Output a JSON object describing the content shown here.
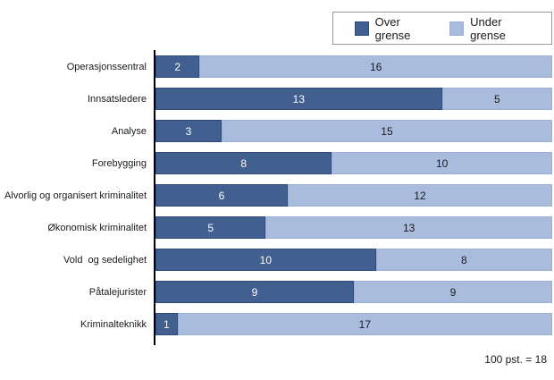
{
  "colors": {
    "over": "#41608F",
    "over_border": "#2F4B7B",
    "under": "#A9BCDE",
    "under_border": "#9BB0D6",
    "axis": "#000000",
    "legend_border": "#999999",
    "label_text": "#1A1A1A",
    "value_text_on_dark": "#FFFFFF",
    "value_text_on_light": "#1A1A1A"
  },
  "legend": {
    "items": [
      {
        "label": "Over grense",
        "swatch": "dark-blue"
      },
      {
        "label": "Under grense",
        "swatch": "light-blue"
      }
    ],
    "position": "top-right"
  },
  "footnote": "100 pst. = 18",
  "chart_data": {
    "type": "bar",
    "orientation": "horizontal",
    "stacked": true,
    "title": "",
    "xlabel": "",
    "ylabel": "",
    "xlim": [
      0,
      18
    ],
    "total_per_bar": 18,
    "grid": false,
    "legend_position": "top-right",
    "categories": [
      "Operasjonssentral",
      "Innsatsledere",
      "Analyse",
      "Forebygging",
      "Alvorlig og organisert kriminalitet",
      "Økonomisk kriminalitet",
      "Vold  og sedelighet",
      "Påtalejurister",
      "Kriminalteknikk"
    ],
    "series": [
      {
        "name": "Over grense",
        "color": "#41608F",
        "values": [
          2,
          13,
          3,
          8,
          6,
          5,
          10,
          9,
          1
        ]
      },
      {
        "name": "Under grense",
        "color": "#A9BCDE",
        "values": [
          16,
          5,
          15,
          10,
          12,
          13,
          8,
          9,
          17
        ]
      }
    ],
    "annotations": [
      "100 pst. = 18"
    ]
  }
}
